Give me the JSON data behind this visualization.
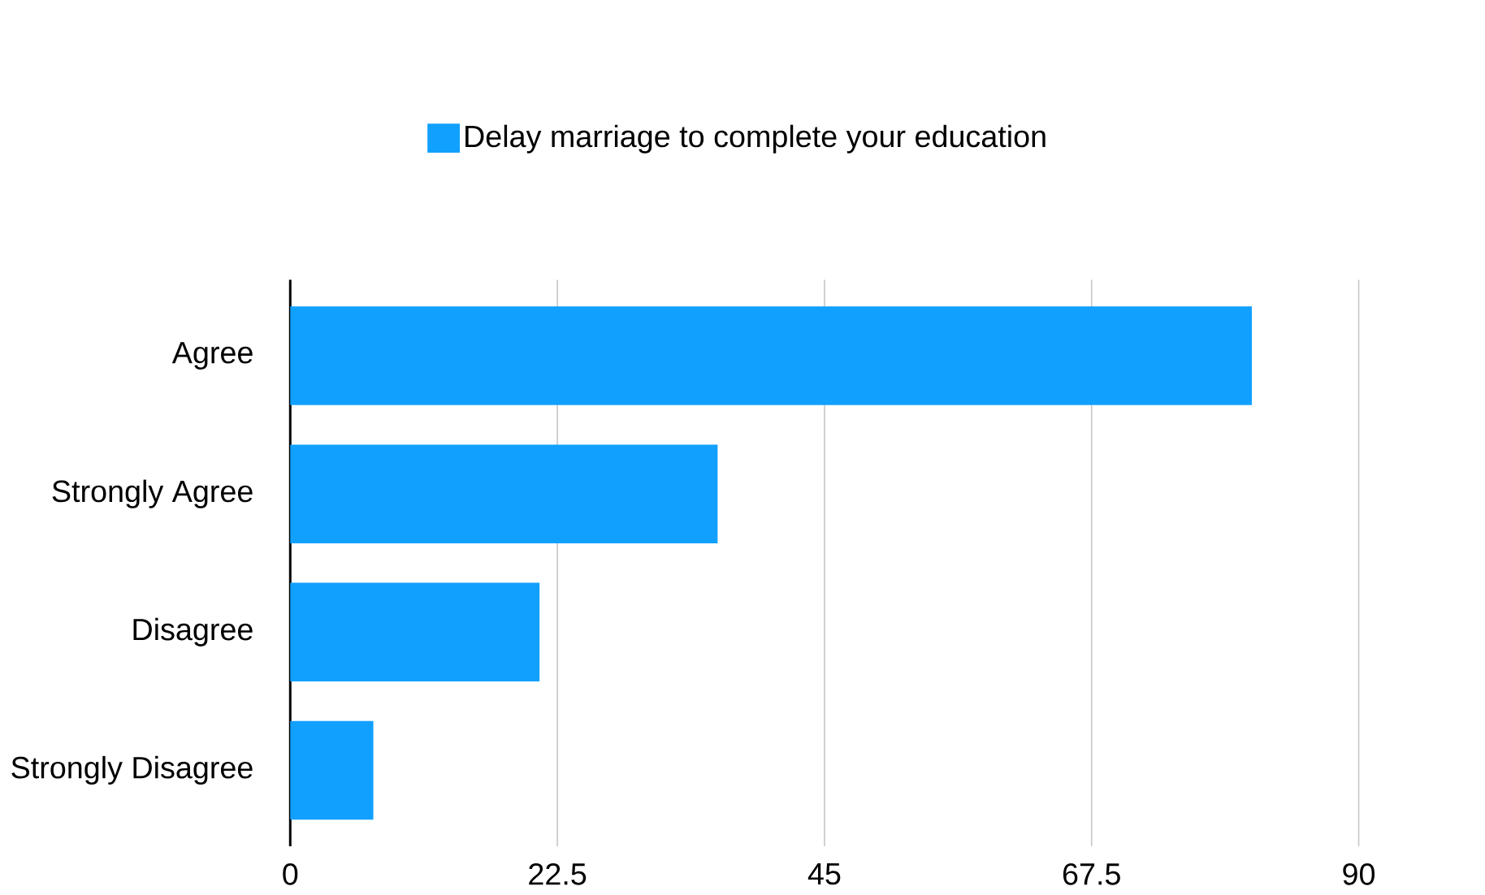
{
  "chart_data": {
    "type": "bar",
    "orientation": "horizontal",
    "categories": [
      "Agree",
      "Strongly Agree",
      "Disagree",
      "Strongly Disagree"
    ],
    "series": [
      {
        "name": "Delay marriage to complete your education",
        "color": "#12a0ff",
        "values": [
          81,
          36,
          21,
          7
        ]
      }
    ],
    "xlim": [
      0,
      90
    ],
    "xticks": [
      0,
      22.5,
      45,
      67.5,
      90
    ],
    "grid": "x",
    "legend": "top"
  }
}
